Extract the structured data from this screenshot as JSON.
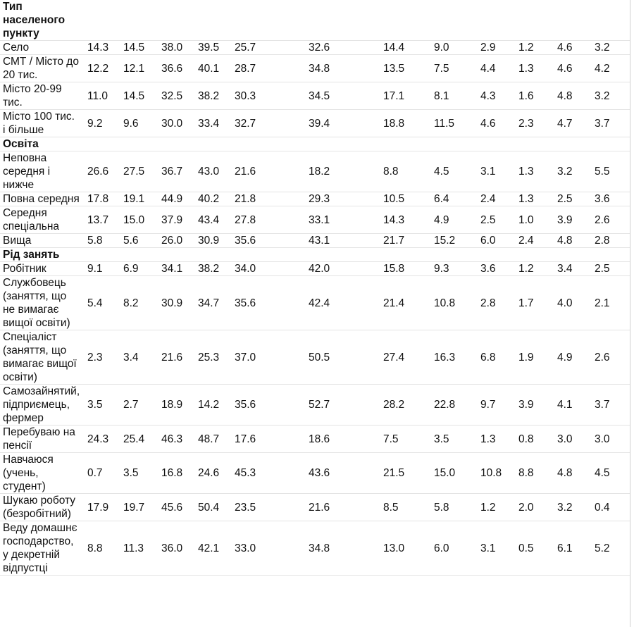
{
  "sections": [
    {
      "title": "Тип населеного пункту",
      "title_lines": [
        "Тип",
        "населеного",
        "пункту"
      ],
      "rows": [
        {
          "label": [
            "Село"
          ],
          "values": [
            "14.3",
            "14.5",
            "38.0",
            "39.5",
            "25.7",
            "32.6",
            "14.4",
            "9.0",
            "2.9",
            "1.2",
            "4.6",
            "3.2"
          ]
        },
        {
          "label": [
            "СМТ / Місто до",
            "20 тис."
          ],
          "values": [
            "12.2",
            "12.1",
            "36.6",
            "40.1",
            "28.7",
            "34.8",
            "13.5",
            "7.5",
            "4.4",
            "1.3",
            "4.6",
            "4.2"
          ]
        },
        {
          "label": [
            "Місто 20-99",
            "тис."
          ],
          "values": [
            "11.0",
            "14.5",
            "32.5",
            "38.2",
            "30.3",
            "34.5",
            "17.1",
            "8.1",
            "4.3",
            "1.6",
            "4.8",
            "3.2"
          ]
        },
        {
          "label": [
            "Місто 100 тис.",
            "і більше"
          ],
          "values": [
            "9.2",
            "9.6",
            "30.0",
            "33.4",
            "32.7",
            "39.4",
            "18.8",
            "11.5",
            "4.6",
            "2.3",
            "4.7",
            "3.7"
          ]
        }
      ]
    },
    {
      "title": "Освіта",
      "title_lines": [
        "Освіта"
      ],
      "rows": [
        {
          "label": [
            "Неповна",
            "середня і",
            "нижче"
          ],
          "values": [
            "26.6",
            "27.5",
            "36.7",
            "43.0",
            "21.6",
            "18.2",
            "8.8",
            "4.5",
            "3.1",
            "1.3",
            "3.2",
            "5.5"
          ]
        },
        {
          "label": [
            "Повна середня"
          ],
          "values": [
            "17.8",
            "19.1",
            "44.9",
            "40.2",
            "21.8",
            "29.3",
            "10.5",
            "6.4",
            "2.4",
            "1.3",
            "2.5",
            "3.6"
          ]
        },
        {
          "label": [
            "Середня",
            "спеціальна"
          ],
          "values": [
            "13.7",
            "15.0",
            "37.9",
            "43.4",
            "27.8",
            "33.1",
            "14.3",
            "4.9",
            "2.5",
            "1.0",
            "3.9",
            "2.6"
          ]
        },
        {
          "label": [
            "Вища"
          ],
          "values": [
            "5.8",
            "5.6",
            "26.0",
            "30.9",
            "35.6",
            "43.1",
            "21.7",
            "15.2",
            "6.0",
            "2.4",
            "4.8",
            "2.8"
          ]
        }
      ]
    },
    {
      "title": "Рід занять",
      "title_lines": [
        "Рід занять"
      ],
      "rows": [
        {
          "label": [
            "Робітник"
          ],
          "values": [
            "9.1",
            "6.9",
            "34.1",
            "38.2",
            "34.0",
            "42.0",
            "15.8",
            "9.3",
            "3.6",
            "1.2",
            "3.4",
            "2.5"
          ]
        },
        {
          "label": [
            "Службовець",
            "(заняття, що",
            "не вимагає",
            "вищої освіти)"
          ],
          "values": [
            "5.4",
            "8.2",
            "30.9",
            "34.7",
            "35.6",
            "42.4",
            "21.4",
            "10.8",
            "2.8",
            "1.7",
            "4.0",
            "2.1"
          ]
        },
        {
          "label": [
            "Спеціаліст",
            "(заняття, що",
            "вимагає вищої",
            "освіти)"
          ],
          "values": [
            "2.3",
            "3.4",
            "21.6",
            "25.3",
            "37.0",
            "50.5",
            "27.4",
            "16.3",
            "6.8",
            "1.9",
            "4.9",
            "2.6"
          ]
        },
        {
          "label": [
            "Самозайнятий,",
            "підприємець,",
            "фермер"
          ],
          "values": [
            "3.5",
            "2.7",
            "18.9",
            "14.2",
            "35.6",
            "52.7",
            "28.2",
            "22.8",
            "9.7",
            "3.9",
            "4.1",
            "3.7"
          ]
        },
        {
          "label": [
            "Перебуваю на",
            "пенсії"
          ],
          "values": [
            "24.3",
            "25.4",
            "46.3",
            "48.7",
            "17.6",
            "18.6",
            "7.5",
            "3.5",
            "1.3",
            "0.8",
            "3.0",
            "3.0"
          ]
        },
        {
          "label": [
            "Навчаюся",
            "(учень,",
            "студент)"
          ],
          "values": [
            "0.7",
            "3.5",
            "16.8",
            "24.6",
            "45.3",
            "43.6",
            "21.5",
            "15.0",
            "10.8",
            "8.8",
            "4.8",
            "4.5"
          ]
        },
        {
          "label": [
            "Шукаю роботу",
            "(безробітний)"
          ],
          "values": [
            "17.9",
            "19.7",
            "45.6",
            "50.4",
            "23.5",
            "21.6",
            "8.5",
            "5.8",
            "1.2",
            "2.0",
            "3.2",
            "0.4"
          ]
        },
        {
          "label": [
            "Веду домашнє",
            "господарство,",
            "у декретній",
            "відпустці"
          ],
          "values": [
            "8.8",
            "11.3",
            "36.0",
            "42.1",
            "33.0",
            "34.8",
            "13.0",
            "6.0",
            "3.1",
            "0.5",
            "6.1",
            "5.2"
          ]
        }
      ]
    }
  ]
}
